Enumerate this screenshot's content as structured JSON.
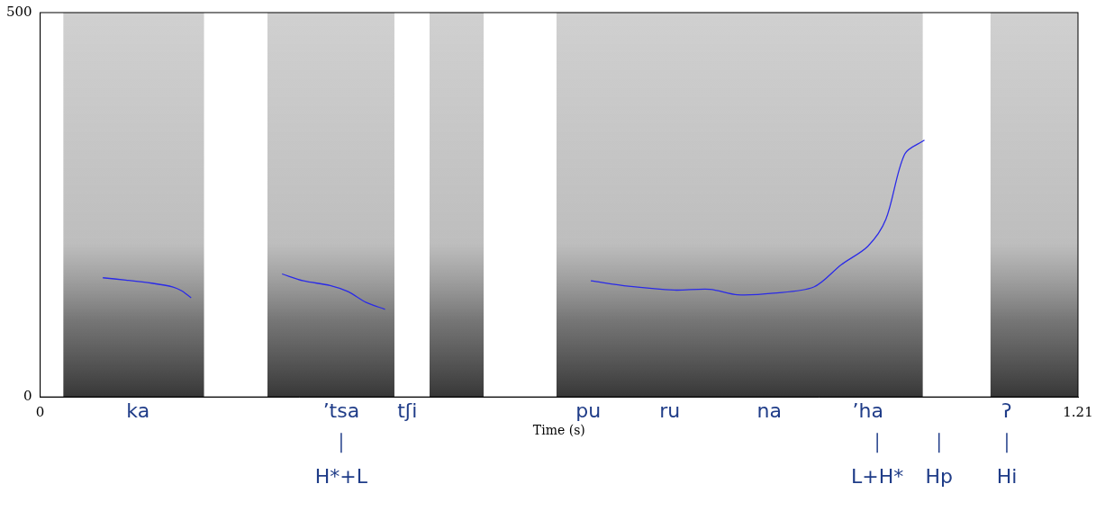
{
  "chart_data": {
    "type": "line",
    "x_label": "Time (s)",
    "xlim": [
      0,
      1.21
    ],
    "xticks": [
      0,
      1.21
    ],
    "ylim": [
      0,
      500
    ],
    "yticks": [
      0,
      500
    ],
    "grid": false,
    "color": "#1f3c88",
    "segments": [
      {
        "start": 0.027,
        "end": 0.191
      },
      {
        "start": 0.265,
        "end": 0.413
      },
      {
        "start": 0.454,
        "end": 0.517
      },
      {
        "start": 0.602,
        "end": 1.029
      },
      {
        "start": 1.108,
        "end": 1.21
      }
    ],
    "series": [
      {
        "color": "#2a2ae8",
        "x": [
          0.073,
          0.1,
          0.13,
          0.155,
          0.165,
          0.176
        ],
        "values": [
          155,
          152,
          148,
          143,
          138,
          129
        ]
      },
      {
        "color": "#2a2ae8",
        "x": [
          0.282,
          0.307,
          0.338,
          0.359,
          0.38,
          0.402
        ],
        "values": [
          160,
          151,
          145,
          137,
          123,
          114
        ]
      },
      {
        "color": "#2a2ae8",
        "x": [
          0.642,
          0.686,
          0.739,
          0.781,
          0.813,
          0.855,
          0.902,
          0.934,
          0.965,
          0.986,
          1.008,
          1.031
        ],
        "values": [
          151,
          144,
          139,
          140,
          133,
          135,
          143,
          172,
          196,
          231,
          316,
          334
        ]
      }
    ],
    "syllables": [
      {
        "text": "ka",
        "x": 0.114
      },
      {
        "text": "’tsa",
        "x": 0.351
      },
      {
        "text": "tʃi",
        "x": 0.428
      },
      {
        "text": "pu",
        "x": 0.639
      },
      {
        "text": "ru",
        "x": 0.734
      },
      {
        "text": "na",
        "x": 0.85
      },
      {
        "text": "’ha",
        "x": 0.965
      },
      {
        "text": "ʔ",
        "x": 1.127
      }
    ],
    "tones": [
      {
        "text": "H*+L",
        "x": 0.351
      },
      {
        "text": "L+H*",
        "x": 0.976
      },
      {
        "text": "Hp",
        "x": 1.048
      },
      {
        "text": "Hi",
        "x": 1.127
      }
    ]
  }
}
